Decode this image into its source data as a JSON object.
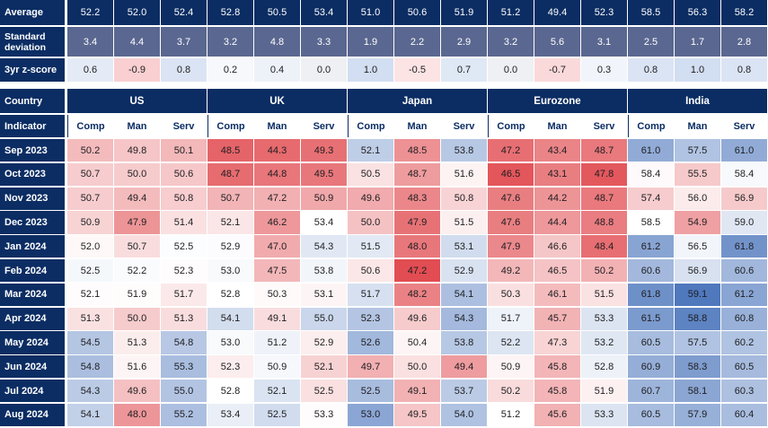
{
  "colors": {
    "navy": "#0b2d63",
    "slate": "#5a6790",
    "red_strong": "#e0474c",
    "blue_strong": "#4f78bd",
    "neutral": "#ffffff",
    "gray_cell": "#eef0f4"
  },
  "summary": {
    "average_label": "Average",
    "std_label": "Standard deviation",
    "z_label": "3yr z-score",
    "average": [
      "52.2",
      "52.0",
      "52.4",
      "52.8",
      "50.5",
      "53.4",
      "51.0",
      "50.6",
      "51.9",
      "51.2",
      "49.4",
      "52.3",
      "58.5",
      "56.3",
      "58.2"
    ],
    "std": [
      "3.4",
      "4.4",
      "3.7",
      "3.2",
      "4.8",
      "3.3",
      "1.9",
      "2.2",
      "2.9",
      "3.2",
      "5.6",
      "3.1",
      "2.5",
      "1.7",
      "2.8"
    ],
    "z": [
      "0.6",
      "-0.9",
      "0.8",
      "0.2",
      "0.4",
      "0.0",
      "1.0",
      "-0.5",
      "0.7",
      "0.0",
      "-0.7",
      "0.3",
      "0.8",
      "1.0",
      "0.8"
    ]
  },
  "header": {
    "country_label": "Country",
    "indicator_label": "Indicator",
    "countries": [
      "US",
      "UK",
      "Japan",
      "Eurozone",
      "India"
    ],
    "indicators": [
      "Comp",
      "Man",
      "Serv"
    ]
  },
  "chart_data": {
    "type": "table",
    "title": "",
    "columns": [
      "US Comp",
      "US Man",
      "US Serv",
      "UK Comp",
      "UK Man",
      "UK Serv",
      "Japan Comp",
      "Japan Man",
      "Japan Serv",
      "Eurozone Comp",
      "Eurozone Man",
      "Eurozone Serv",
      "India Comp",
      "India Man",
      "India Serv"
    ],
    "rows": [
      {
        "label": "Sep 2023",
        "values": [
          50.2,
          49.8,
          50.1,
          48.5,
          44.3,
          49.3,
          52.1,
          48.5,
          53.8,
          47.2,
          43.4,
          48.7,
          61.0,
          57.5,
          61.0
        ]
      },
      {
        "label": "Oct 2023",
        "values": [
          50.7,
          50.0,
          50.6,
          48.7,
          44.8,
          49.5,
          50.5,
          48.7,
          51.6,
          46.5,
          43.1,
          47.8,
          58.4,
          55.5,
          58.4
        ]
      },
      {
        "label": "Nov 2023",
        "values": [
          50.7,
          49.4,
          50.8,
          50.7,
          47.2,
          50.9,
          49.6,
          48.3,
          50.8,
          47.6,
          44.2,
          48.7,
          57.4,
          56.0,
          56.9
        ]
      },
      {
        "label": "Dec 2023",
        "values": [
          50.9,
          47.9,
          51.4,
          52.1,
          46.2,
          53.4,
          50.0,
          47.9,
          51.5,
          47.6,
          44.4,
          48.8,
          58.5,
          54.9,
          59.0
        ]
      },
      {
        "label": "Jan 2024",
        "values": [
          52.0,
          50.7,
          52.5,
          52.9,
          47.0,
          54.3,
          51.5,
          48.0,
          53.1,
          47.9,
          46.6,
          48.4,
          61.2,
          56.5,
          61.8
        ]
      },
      {
        "label": "Feb 2024",
        "values": [
          52.5,
          52.2,
          52.3,
          53.0,
          47.5,
          53.8,
          50.6,
          47.2,
          52.9,
          49.2,
          46.5,
          50.2,
          60.6,
          56.9,
          60.6
        ]
      },
      {
        "label": "Mar 2024",
        "values": [
          52.1,
          51.9,
          51.7,
          52.8,
          50.3,
          53.1,
          51.7,
          48.2,
          54.1,
          50.3,
          46.1,
          51.5,
          61.8,
          59.1,
          61.2
        ]
      },
      {
        "label": "Apr 2024",
        "values": [
          51.3,
          50.0,
          51.3,
          54.1,
          49.1,
          55.0,
          52.3,
          49.6,
          54.3,
          51.7,
          45.7,
          53.3,
          61.5,
          58.8,
          60.8
        ]
      },
      {
        "label": "May 2024",
        "values": [
          54.5,
          51.3,
          54.8,
          53.0,
          51.2,
          52.9,
          52.6,
          50.4,
          53.8,
          52.2,
          47.3,
          53.2,
          60.5,
          57.5,
          60.2
        ]
      },
      {
        "label": "Jun 2024",
        "values": [
          54.8,
          51.6,
          55.3,
          52.3,
          50.9,
          52.1,
          49.7,
          50.0,
          49.4,
          50.9,
          45.8,
          52.8,
          60.9,
          58.3,
          60.5
        ]
      },
      {
        "label": "Jul 2024",
        "values": [
          54.3,
          49.6,
          55.0,
          52.8,
          52.1,
          52.5,
          52.5,
          49.1,
          53.7,
          50.2,
          45.8,
          51.9,
          60.7,
          58.1,
          60.3
        ]
      },
      {
        "label": "Aug 2024",
        "values": [
          54.1,
          48.0,
          55.2,
          53.4,
          52.5,
          53.3,
          53.0,
          49.5,
          54.0,
          51.2,
          45.6,
          53.3,
          60.5,
          57.9,
          60.4
        ]
      }
    ]
  }
}
